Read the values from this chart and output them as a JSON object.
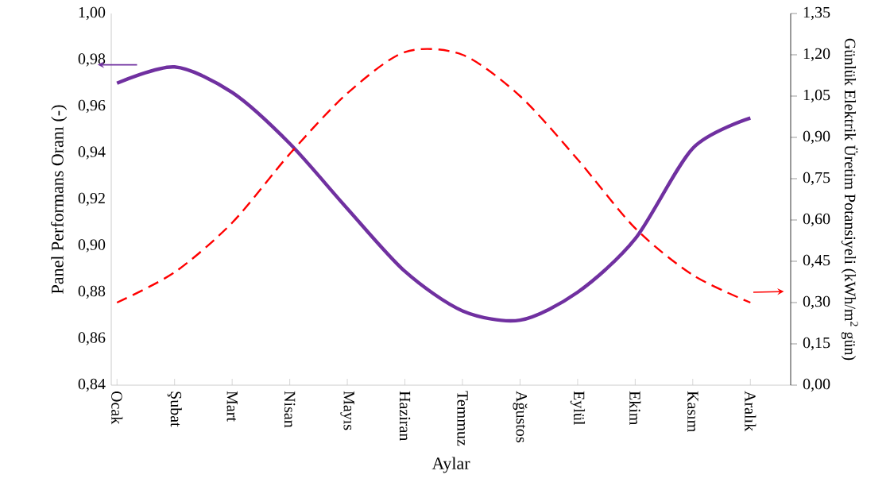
{
  "chart_data": {
    "type": "line",
    "xlabel": "Aylar",
    "ylabel": "Panel Performans  Oranı  (-)",
    "y2label": "Günlük Elektrik  Üretim Potansiyeli (kWh/m$^{2}$ gün)",
    "categories": [
      "Ocak",
      "Şubat",
      "Mart",
      "Nisan",
      "Mayıs",
      "Haziran",
      "Temmuz",
      "Ağustos",
      "Eylül",
      "Ekim",
      "Kasım",
      "Aralık"
    ],
    "series": [
      {
        "color": "#7030a0",
        "line_style": "solid",
        "values": [
          0.97,
          0.977,
          0.966,
          0.944,
          0.916,
          0.889,
          0.872,
          0.868,
          0.88,
          0.903,
          0.942,
          0.955
        ]
      },
      {
        "color": "#ff0000",
        "line_style": "dashed",
        "axis": "y2",
        "values": [
          0.3,
          0.41,
          0.59,
          0.84,
          1.06,
          1.21,
          1.2,
          1.05,
          0.82,
          0.57,
          0.4,
          0.3
        ]
      }
    ],
    "ylim": [
      0.84,
      1.0
    ],
    "yticks": [
      {
        "value": 0.84,
        "label": "0,84"
      },
      {
        "value": 0.86,
        "label": "0,86"
      },
      {
        "value": 0.88,
        "label": "0,88"
      },
      {
        "value": 0.9,
        "label": "0,90"
      },
      {
        "value": 0.92,
        "label": "0,92"
      },
      {
        "value": 0.94,
        "label": "0,94"
      },
      {
        "value": 0.96,
        "label": "0,96"
      },
      {
        "value": 0.98,
        "label": "0,98"
      },
      {
        "value": 1.0,
        "label": "1,00"
      }
    ],
    "y2lim": [
      0,
      1.35
    ],
    "y2ticks": [
      {
        "value": 0,
        "label": "0,00"
      },
      {
        "value": 0.15,
        "label": "0,15"
      },
      {
        "value": 0.3,
        "label": "0,30"
      },
      {
        "value": 0.45,
        "label": "0,45"
      },
      {
        "value": 0.6,
        "label": "0,60"
      },
      {
        "value": 0.75,
        "label": "0,75"
      },
      {
        "value": 0.9,
        "label": "0,90"
      },
      {
        "value": 1.05,
        "label": "1,05"
      },
      {
        "value": 1.2,
        "label": "1,20"
      },
      {
        "value": 1.35,
        "label": "1,35"
      }
    ],
    "grid": false,
    "marker": "none"
  }
}
